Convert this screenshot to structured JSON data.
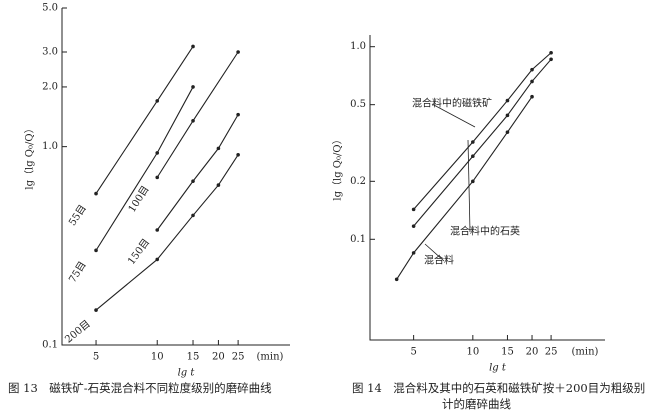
{
  "chart_data": [
    {
      "type": "line",
      "log": true,
      "grid": false,
      "caption": "图 13　磁铁矿-石英混合料不同粒度级别的磨碎曲线",
      "x_label": "lg t",
      "x_unit": "(min)",
      "y_label": "lg（lg Q₀/Q）",
      "xlim": [
        3.4,
        45
      ],
      "xticks": [
        5,
        10,
        15,
        20,
        25
      ],
      "ylim": [
        0.1,
        5
      ],
      "yticks": [
        {
          "value": 0.1,
          "label": "0.1"
        },
        {
          "value": 1,
          "label": "1.0"
        },
        {
          "value": 2,
          "label": "2.0"
        },
        {
          "value": 3,
          "label": "3.0"
        },
        {
          "value": 5,
          "label": "5.0"
        }
      ],
      "series": [
        {
          "name": "55目",
          "color": "#222222",
          "x": [
            5,
            10,
            15
          ],
          "values": [
            0.58,
            1.7,
            3.2
          ]
        },
        {
          "name": "75目",
          "color": "#222222",
          "x": [
            5,
            10,
            15
          ],
          "values": [
            0.3,
            0.93,
            2.0
          ]
        },
        {
          "name": "100目",
          "color": "#222222",
          "x": [
            10,
            15,
            25
          ],
          "values": [
            0.7,
            1.35,
            3.0
          ]
        },
        {
          "name": "150目",
          "color": "#222222",
          "x": [
            10,
            15,
            20,
            25
          ],
          "values": [
            0.38,
            0.67,
            0.98,
            1.45
          ]
        },
        {
          "name": "200目",
          "color": "#222222",
          "x": [
            5,
            10,
            15,
            20,
            25
          ],
          "values": [
            0.15,
            0.27,
            0.45,
            0.64,
            0.91
          ]
        }
      ]
    },
    {
      "type": "line",
      "log": true,
      "grid": false,
      "caption": "图 14　混合料及其中的石英和磁铁矿按＋200目为粗级别计的磨碎曲线",
      "x_label": "lg t",
      "x_unit": "(min)",
      "y_label": "lg（lg Q₀/Q）",
      "xlim": [
        3,
        47
      ],
      "xticks": [
        5,
        10,
        15,
        20,
        25
      ],
      "ylim": [
        0.03,
        1.15
      ],
      "yticks": [
        {
          "value": 0.1,
          "label": "0.1"
        },
        0.2,
        0.5,
        {
          "value": 1,
          "label": "1.0"
        }
      ],
      "series": [
        {
          "name": "混合料中的磁铁矿",
          "color": "#222222",
          "x": [
            5,
            10,
            15,
            20,
            25
          ],
          "values": [
            0.143,
            0.32,
            0.525,
            0.76,
            0.93
          ]
        },
        {
          "name": "混合料中的石英",
          "color": "#222222",
          "x": [
            5,
            10,
            15,
            20,
            25
          ],
          "values": [
            0.117,
            0.27,
            0.44,
            0.66,
            0.86
          ]
        },
        {
          "name": "混合料",
          "color": "#222222",
          "x": [
            4.1,
            5,
            10,
            15,
            20
          ],
          "values": [
            0.062,
            0.085,
            0.2,
            0.36,
            0.55
          ]
        }
      ]
    }
  ]
}
